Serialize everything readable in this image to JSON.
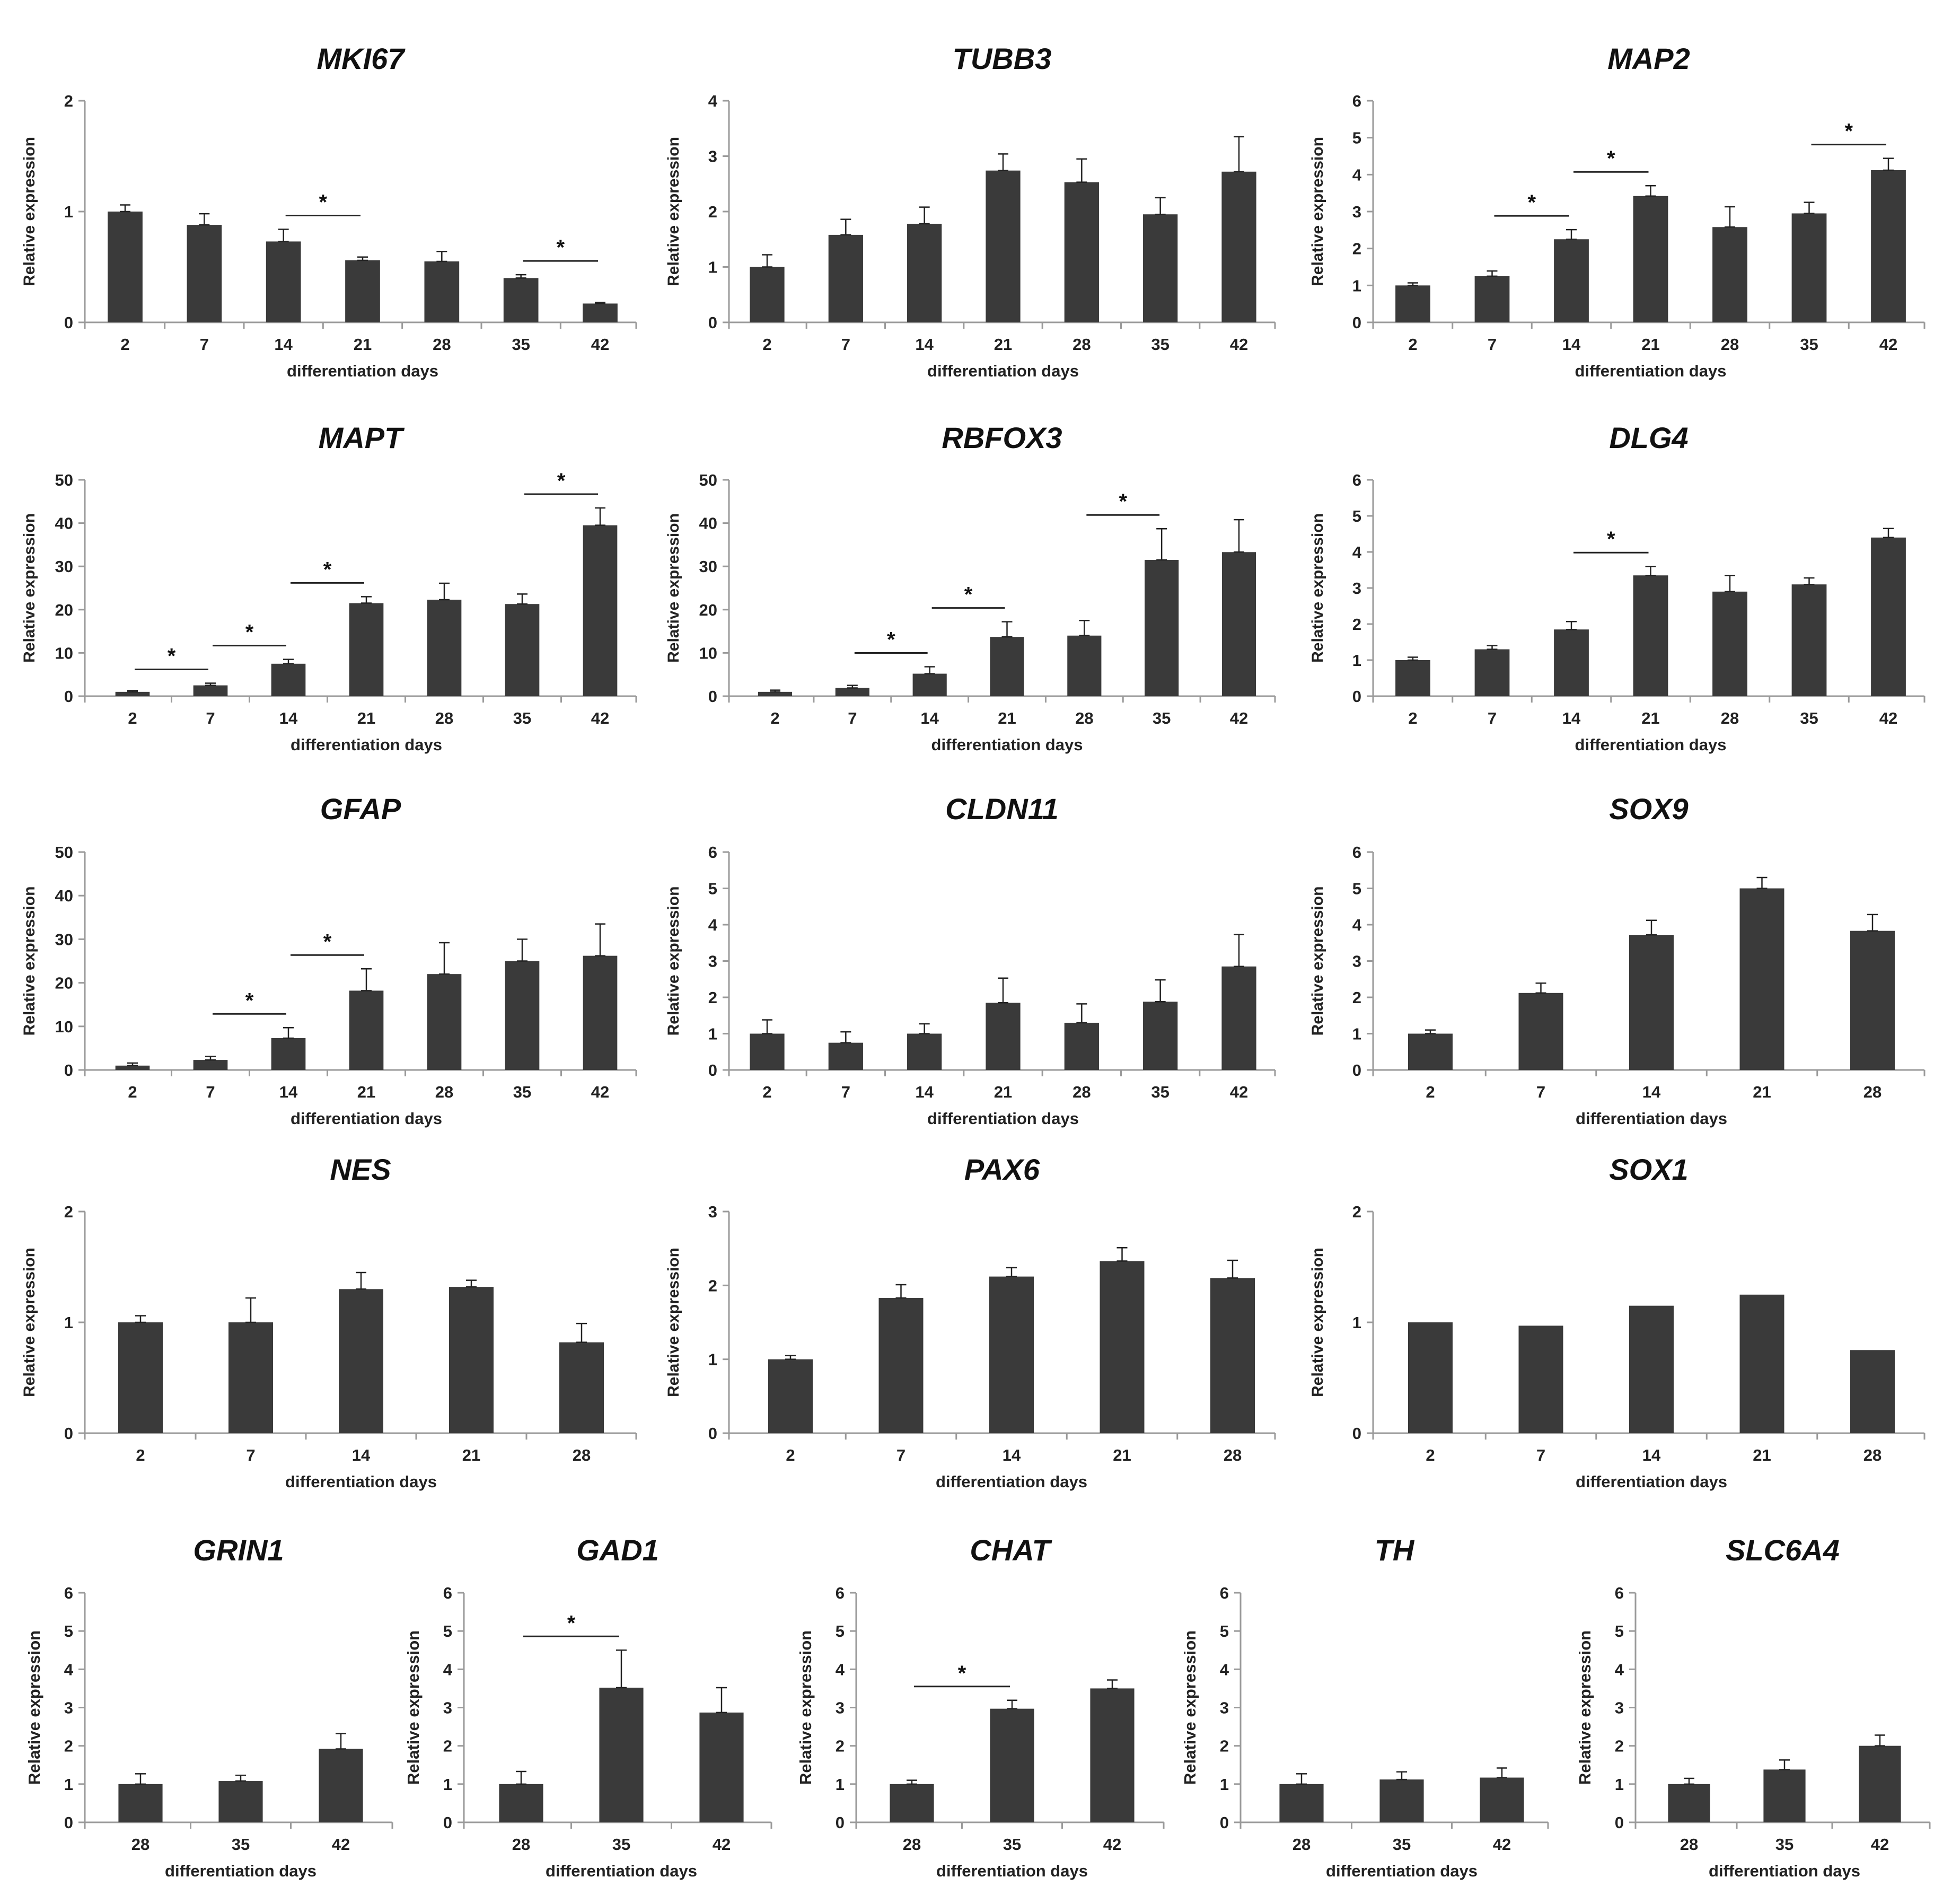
{
  "colors": {
    "bar": "#3a3a3a",
    "axis": "#9a9a9a",
    "text": "#222222",
    "sig_line": "#222222"
  },
  "chart_data": [
    {
      "type": "bar",
      "title": "MKI67",
      "xlabel": "differentiation days",
      "ylabel": "Relative expression",
      "ylim": [
        0,
        2
      ],
      "yticks": [
        "0",
        "1",
        "2"
      ],
      "categories": [
        "2",
        "7",
        "14",
        "21",
        "28",
        "35",
        "42"
      ],
      "values": [
        1.0,
        0.88,
        0.73,
        0.56,
        0.55,
        0.4,
        0.17
      ],
      "errors": [
        0.06,
        0.1,
        0.11,
        0.03,
        0.09,
        0.03,
        0.01
      ],
      "significance": [
        {
          "from": "14",
          "to": "21",
          "label": "*"
        },
        {
          "from": "35",
          "to": "42",
          "label": "*"
        }
      ]
    },
    {
      "type": "bar",
      "title": "TUBB3",
      "xlabel": "differentiation days",
      "ylabel": "Relative expression",
      "ylim": [
        0,
        4
      ],
      "yticks": [
        "0",
        "1",
        "2",
        "3",
        "4"
      ],
      "categories": [
        "2",
        "7",
        "14",
        "21",
        "28",
        "35",
        "42"
      ],
      "values": [
        1.0,
        1.58,
        1.78,
        2.74,
        2.53,
        1.95,
        2.72
      ],
      "errors": [
        0.22,
        0.28,
        0.3,
        0.3,
        0.42,
        0.3,
        0.63
      ],
      "significance": []
    },
    {
      "type": "bar",
      "title": "MAP2",
      "xlabel": "differentiation days",
      "ylabel": "Relative expression",
      "ylim": [
        0,
        6
      ],
      "yticks": [
        "0",
        "1",
        "2",
        "3",
        "4",
        "5",
        "6"
      ],
      "categories": [
        "2",
        "7",
        "14",
        "21",
        "28",
        "35",
        "42"
      ],
      "values": [
        1.0,
        1.25,
        2.25,
        3.42,
        2.58,
        2.95,
        4.12
      ],
      "errors": [
        0.07,
        0.14,
        0.26,
        0.28,
        0.55,
        0.3,
        0.32
      ],
      "significance": [
        {
          "from": "7",
          "to": "14",
          "label": "*"
        },
        {
          "from": "14",
          "to": "21",
          "label": "*"
        },
        {
          "from": "35",
          "to": "42",
          "label": "*"
        }
      ]
    },
    {
      "type": "bar",
      "title": "MAPT",
      "xlabel": "differentiation days",
      "ylabel": "Relative expression",
      "ylim": [
        0,
        50
      ],
      "yticks": [
        "0",
        "10",
        "20",
        "30",
        "40",
        "50"
      ],
      "categories": [
        "2",
        "7",
        "14",
        "21",
        "28",
        "35",
        "42"
      ],
      "values": [
        1.0,
        2.5,
        7.5,
        21.5,
        22.3,
        21.3,
        39.5
      ],
      "errors": [
        0.3,
        0.5,
        1.0,
        1.5,
        3.8,
        2.3,
        4.0
      ],
      "significance": [
        {
          "from": "2",
          "to": "7",
          "label": "*"
        },
        {
          "from": "7",
          "to": "14",
          "label": "*"
        },
        {
          "from": "14",
          "to": "21",
          "label": "*"
        },
        {
          "from": "35",
          "to": "42",
          "label": "*"
        }
      ]
    },
    {
      "type": "bar",
      "title": "RBFOX3",
      "xlabel": "differentiation days",
      "ylabel": "Relative expression",
      "ylim": [
        0,
        50
      ],
      "yticks": [
        "0",
        "10",
        "20",
        "30",
        "40",
        "50"
      ],
      "categories": [
        "2",
        "7",
        "14",
        "21",
        "28",
        "35",
        "42"
      ],
      "values": [
        1.0,
        1.9,
        5.2,
        13.7,
        14.0,
        31.5,
        33.3
      ],
      "errors": [
        0.4,
        0.6,
        1.6,
        3.5,
        3.5,
        7.2,
        7.5
      ],
      "significance": [
        {
          "from": "7",
          "to": "14",
          "label": "*"
        },
        {
          "from": "14",
          "to": "21",
          "label": "*"
        },
        {
          "from": "28",
          "to": "35",
          "label": "*"
        }
      ]
    },
    {
      "type": "bar",
      "title": "DLG4",
      "xlabel": "differentiation days",
      "ylabel": "Relative expression",
      "ylim": [
        0,
        6
      ],
      "yticks": [
        "0",
        "1",
        "2",
        "3",
        "4",
        "5",
        "6"
      ],
      "categories": [
        "2",
        "7",
        "14",
        "21",
        "28",
        "35",
        "42"
      ],
      "values": [
        1.0,
        1.3,
        1.85,
        3.35,
        2.9,
        3.1,
        4.4
      ],
      "errors": [
        0.08,
        0.1,
        0.22,
        0.25,
        0.45,
        0.18,
        0.25
      ],
      "significance": [
        {
          "from": "14",
          "to": "21",
          "label": "*"
        }
      ]
    },
    {
      "type": "bar",
      "title": "GFAP",
      "xlabel": "differentiation days",
      "ylabel": "Relative expression",
      "ylim": [
        0,
        50
      ],
      "yticks": [
        "0",
        "10",
        "20",
        "30",
        "40",
        "50"
      ],
      "categories": [
        "2",
        "7",
        "14",
        "21",
        "28",
        "35",
        "42"
      ],
      "values": [
        1.0,
        2.3,
        7.3,
        18.2,
        22.0,
        25.0,
        26.2
      ],
      "errors": [
        0.6,
        0.8,
        2.4,
        5.0,
        7.2,
        5.0,
        7.3
      ],
      "significance": [
        {
          "from": "7",
          "to": "14",
          "label": "*"
        },
        {
          "from": "14",
          "to": "21",
          "label": "*"
        }
      ]
    },
    {
      "type": "bar",
      "title": "CLDN11",
      "xlabel": "differentiation days",
      "ylabel": "Relative expression",
      "ylim": [
        0,
        6
      ],
      "yticks": [
        "0",
        "1",
        "2",
        "3",
        "4",
        "5",
        "6"
      ],
      "categories": [
        "2",
        "7",
        "14",
        "21",
        "28",
        "35",
        "42"
      ],
      "values": [
        1.0,
        0.75,
        1.0,
        1.85,
        1.3,
        1.88,
        2.85
      ],
      "errors": [
        0.38,
        0.3,
        0.27,
        0.68,
        0.52,
        0.6,
        0.88
      ],
      "significance": []
    },
    {
      "type": "bar",
      "title": "SOX9",
      "xlabel": "differentiation days",
      "ylabel": "Relative expression",
      "ylim": [
        0,
        6
      ],
      "yticks": [
        "0",
        "1",
        "2",
        "3",
        "4",
        "5",
        "6"
      ],
      "categories": [
        "2",
        "7",
        "14",
        "21",
        "28"
      ],
      "values": [
        1.0,
        2.12,
        3.72,
        5.0,
        3.83
      ],
      "errors": [
        0.1,
        0.27,
        0.4,
        0.3,
        0.45
      ],
      "significance": []
    },
    {
      "type": "bar",
      "title": "NES",
      "xlabel": "differentiation days",
      "ylabel": "Relative expression",
      "ylim": [
        0,
        2
      ],
      "yticks": [
        "0",
        "1",
        "2"
      ],
      "categories": [
        "2",
        "7",
        "14",
        "21",
        "28"
      ],
      "values": [
        1.0,
        1.0,
        1.3,
        1.32,
        0.82
      ],
      "errors": [
        0.06,
        0.22,
        0.15,
        0.06,
        0.17
      ],
      "significance": []
    },
    {
      "type": "bar",
      "title": "PAX6",
      "xlabel": "differentiation days",
      "ylabel": "Relative expression",
      "ylim": [
        0,
        3
      ],
      "yticks": [
        "0",
        "1",
        "2",
        "3"
      ],
      "categories": [
        "2",
        "7",
        "14",
        "21",
        "28"
      ],
      "values": [
        1.0,
        1.83,
        2.12,
        2.33,
        2.1
      ],
      "errors": [
        0.05,
        0.18,
        0.12,
        0.18,
        0.24
      ],
      "significance": []
    },
    {
      "type": "bar",
      "title": "SOX1",
      "xlabel": "differentiation days",
      "ylabel": "Relative expression",
      "ylim": [
        0,
        2
      ],
      "yticks": [
        "0",
        "1",
        "2"
      ],
      "categories": [
        "2",
        "7",
        "14",
        "21",
        "28"
      ],
      "values": [
        1.0,
        0.97,
        1.15,
        1.25,
        0.75
      ],
      "errors": [
        0,
        0,
        0,
        0,
        0
      ],
      "significance": []
    },
    {
      "type": "bar",
      "title": "GRIN1",
      "xlabel": "differentiation days",
      "ylabel": "Relative expression",
      "ylim": [
        0,
        6
      ],
      "yticks": [
        "0",
        "1",
        "2",
        "3",
        "4",
        "5",
        "6"
      ],
      "categories": [
        "28",
        "35",
        "42"
      ],
      "values": [
        1.0,
        1.08,
        1.92
      ],
      "errors": [
        0.27,
        0.15,
        0.4
      ],
      "significance": []
    },
    {
      "type": "bar",
      "title": "GAD1",
      "xlabel": "differentiation days",
      "ylabel": "Relative expression",
      "ylim": [
        0,
        6
      ],
      "yticks": [
        "0",
        "1",
        "2",
        "3",
        "4",
        "5",
        "6"
      ],
      "categories": [
        "28",
        "35",
        "42"
      ],
      "values": [
        1.0,
        3.52,
        2.87
      ],
      "errors": [
        0.33,
        0.98,
        0.65
      ],
      "significance": [
        {
          "from": "28",
          "to": "35",
          "label": "*"
        }
      ]
    },
    {
      "type": "bar",
      "title": "CHAT",
      "xlabel": "differentiation days",
      "ylabel": "Relative expression",
      "ylim": [
        0,
        6
      ],
      "yticks": [
        "0",
        "1",
        "2",
        "3",
        "4",
        "5",
        "6"
      ],
      "categories": [
        "28",
        "35",
        "42"
      ],
      "values": [
        1.0,
        2.97,
        3.5
      ],
      "errors": [
        0.1,
        0.22,
        0.22
      ],
      "significance": [
        {
          "from": "28",
          "to": "35",
          "label": "*"
        }
      ]
    },
    {
      "type": "bar",
      "title": "TH",
      "xlabel": "differentiation days",
      "ylabel": "Relative expression",
      "ylim": [
        0,
        6
      ],
      "yticks": [
        "0",
        "1",
        "2",
        "3",
        "4",
        "5",
        "6"
      ],
      "categories": [
        "28",
        "35",
        "42"
      ],
      "values": [
        1.0,
        1.12,
        1.17
      ],
      "errors": [
        0.27,
        0.2,
        0.25
      ],
      "significance": []
    },
    {
      "type": "bar",
      "title": "SLC6A4",
      "xlabel": "differentiation days",
      "ylabel": "Relative expression",
      "ylim": [
        0,
        6
      ],
      "yticks": [
        "0",
        "1",
        "2",
        "3",
        "4",
        "5",
        "6"
      ],
      "categories": [
        "28",
        "35",
        "42"
      ],
      "values": [
        1.0,
        1.38,
        2.0
      ],
      "errors": [
        0.15,
        0.25,
        0.28
      ],
      "significance": []
    }
  ]
}
